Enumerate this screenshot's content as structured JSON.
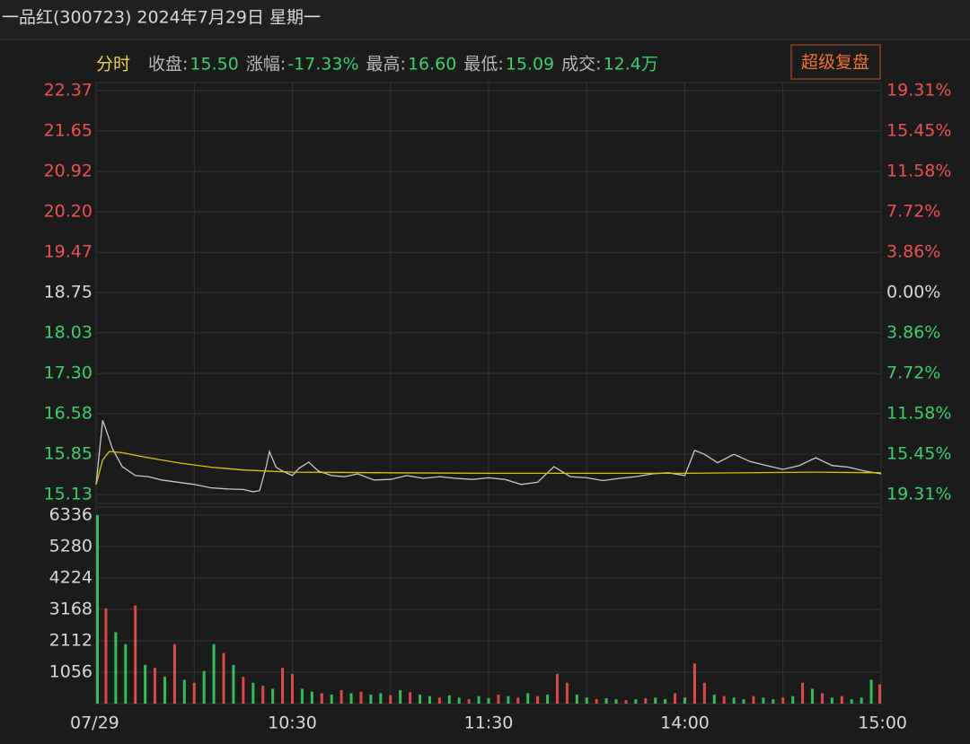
{
  "header": {
    "title": "一品红(300723) 2024年7月29日 星期一",
    "mode": "分时",
    "button": "超级复盘",
    "stats": [
      {
        "label": "收盘:",
        "value": "15.50"
      },
      {
        "label": "涨幅:",
        "value": "-17.33%"
      },
      {
        "label": "最高:",
        "value": "16.60"
      },
      {
        "label": "最低:",
        "value": "15.09"
      },
      {
        "label": "成交:",
        "value": "12.4万"
      }
    ]
  },
  "chart_data": [
    {
      "type": "line",
      "xlim": [
        0,
        240
      ],
      "xgrid": [
        30,
        60,
        90,
        120,
        150,
        180,
        210
      ],
      "ylim": [
        15.13,
        22.37
      ],
      "yticks": [
        22.37,
        21.65,
        20.92,
        {
          "value": 20.2,
          "label": "20.20"
        },
        19.47,
        18.75,
        18.03,
        {
          "value": 17.3,
          "label": "17.30"
        },
        16.58,
        15.85,
        15.13
      ],
      "y2lim": [
        -19.31,
        19.31
      ],
      "y2ticks": [
        {
          "value": 19.31,
          "label": "19.31%"
        },
        {
          "value": 15.45,
          "label": "15.45%"
        },
        {
          "value": 11.58,
          "label": "11.58%"
        },
        {
          "value": 7.72,
          "label": "7.72%"
        },
        {
          "value": 3.86,
          "label": "3.86%"
        },
        {
          "value": 0,
          "label": "0.00%"
        },
        {
          "value": -3.86,
          "label": "3.86%"
        },
        {
          "value": -7.72,
          "label": "7.72%"
        },
        {
          "value": -11.58,
          "label": "11.58%"
        },
        {
          "value": -15.45,
          "label": "15.45%"
        },
        {
          "value": -19.31,
          "label": "19.31%"
        }
      ],
      "series": [
        {
          "color": "#c8c8c8",
          "x": [
            0,
            2,
            3,
            5,
            8,
            12,
            16,
            20,
            25,
            30,
            35,
            40,
            45,
            48,
            50,
            52,
            53,
            55,
            57,
            60,
            62,
            65,
            68,
            72,
            76,
            80,
            85,
            90,
            95,
            100,
            105,
            110,
            115,
            120,
            125,
            130,
            135,
            140,
            145,
            150,
            155,
            160,
            165,
            170,
            175,
            180,
            183,
            186,
            190,
            195,
            200,
            205,
            210,
            215,
            220,
            225,
            230,
            235,
            240
          ],
          "values": [
            15.31,
            16.46,
            16.3,
            15.95,
            15.63,
            15.47,
            15.45,
            15.39,
            15.35,
            15.31,
            15.25,
            15.23,
            15.22,
            15.18,
            15.2,
            15.63,
            15.9,
            15.62,
            15.55,
            15.47,
            15.6,
            15.71,
            15.55,
            15.47,
            15.45,
            15.5,
            15.39,
            15.4,
            15.47,
            15.42,
            15.45,
            15.42,
            15.4,
            15.43,
            15.4,
            15.31,
            15.35,
            15.63,
            15.45,
            15.43,
            15.38,
            15.42,
            15.45,
            15.5,
            15.52,
            15.47,
            15.92,
            15.85,
            15.7,
            15.85,
            15.72,
            15.65,
            15.58,
            15.65,
            15.79,
            15.65,
            15.62,
            15.55,
            15.5
          ]
        },
        {
          "color": "#d6c800",
          "x": [
            0,
            2,
            4,
            8,
            15,
            25,
            35,
            45,
            60,
            90,
            120,
            180,
            220,
            240
          ],
          "values": [
            15.31,
            15.75,
            15.9,
            15.88,
            15.8,
            15.7,
            15.62,
            15.57,
            15.53,
            15.52,
            15.51,
            15.51,
            15.53,
            15.52
          ]
        }
      ]
    },
    {
      "type": "bar",
      "xlim": [
        0,
        240
      ],
      "xgrid": [
        30,
        60,
        90,
        120,
        150,
        180,
        210
      ],
      "xticks": [
        {
          "value": 0,
          "label": "07/29"
        },
        {
          "value": 60,
          "label": "10:30"
        },
        {
          "value": 120,
          "label": "11:30"
        },
        {
          "value": 180,
          "label": "14:00"
        },
        {
          "value": 240,
          "label": "15:00"
        }
      ],
      "ylim": [
        0,
        6336
      ],
      "yticks": [
        6336,
        5280,
        4224,
        3168,
        2112,
        1056
      ],
      "series": [
        {
          "x": [
            0,
            3,
            6,
            9,
            12,
            15,
            18,
            21,
            24,
            27,
            30,
            33,
            36,
            39,
            42,
            45,
            48,
            51,
            54,
            57,
            60,
            63,
            66,
            69,
            72,
            75,
            78,
            81,
            84,
            87,
            90,
            93,
            96,
            99,
            102,
            105,
            108,
            111,
            114,
            117,
            120,
            123,
            126,
            129,
            132,
            135,
            138,
            141,
            144,
            147,
            150,
            153,
            156,
            159,
            162,
            165,
            168,
            171,
            174,
            177,
            180,
            183,
            186,
            189,
            192,
            195,
            198,
            201,
            204,
            207,
            210,
            213,
            216,
            219,
            222,
            225,
            228,
            231,
            234,
            237,
            240
          ],
          "values": [
            6336,
            3200,
            2400,
            2000,
            3300,
            1300,
            1200,
            900,
            2000,
            800,
            700,
            1100,
            2000,
            1700,
            1300,
            900,
            700,
            600,
            500,
            1200,
            1000,
            500,
            400,
            350,
            300,
            450,
            350,
            400,
            300,
            350,
            280,
            450,
            380,
            300,
            250,
            200,
            280,
            200,
            150,
            250,
            180,
            300,
            250,
            200,
            350,
            250,
            300,
            1000,
            700,
            300,
            200,
            150,
            180,
            150,
            120,
            150,
            180,
            200,
            150,
            350,
            200,
            1350,
            700,
            300,
            250,
            200,
            150,
            250,
            200,
            150,
            200,
            250,
            700,
            500,
            350,
            200,
            250,
            150,
            200,
            800,
            650
          ],
          "colors": [
            "#2fbf55",
            "#e04848",
            "#2fbf55",
            "#2fbf55",
            "#e04848",
            "#2fbf55",
            "#e04848",
            "#2fbf55",
            "#e04848",
            "#2fbf55",
            "#e04848",
            "#2fbf55",
            "#2fbf55",
            "#e04848",
            "#2fbf55",
            "#e04848",
            "#2fbf55",
            "#e04848",
            "#2fbf55",
            "#e04848",
            "#e04848",
            "#2fbf55",
            "#2fbf55",
            "#e04848",
            "#2fbf55",
            "#e04848",
            "#2fbf55",
            "#e04848",
            "#2fbf55",
            "#2fbf55",
            "#e04848",
            "#2fbf55",
            "#e04848",
            "#2fbf55",
            "#2fbf55",
            "#e04848",
            "#2fbf55",
            "#2fbf55",
            "#e04848",
            "#2fbf55",
            "#2fbf55",
            "#e04848",
            "#2fbf55",
            "#e04848",
            "#2fbf55",
            "#e04848",
            "#2fbf55",
            "#e04848",
            "#e04848",
            "#2fbf55",
            "#2fbf55",
            "#e04848",
            "#2fbf55",
            "#2fbf55",
            "#e04848",
            "#2fbf55",
            "#e04848",
            "#2fbf55",
            "#2fbf55",
            "#e04848",
            "#2fbf55",
            "#e04848",
            "#e04848",
            "#2fbf55",
            "#e04848",
            "#2fbf55",
            "#2fbf55",
            "#e04848",
            "#2fbf55",
            "#2fbf55",
            "#e04848",
            "#2fbf55",
            "#e04848",
            "#2fbf55",
            "#e04848",
            "#2fbf55",
            "#e04848",
            "#2fbf55",
            "#2fbf55",
            "#2fbf55",
            "#e04848"
          ]
        }
      ]
    }
  ]
}
